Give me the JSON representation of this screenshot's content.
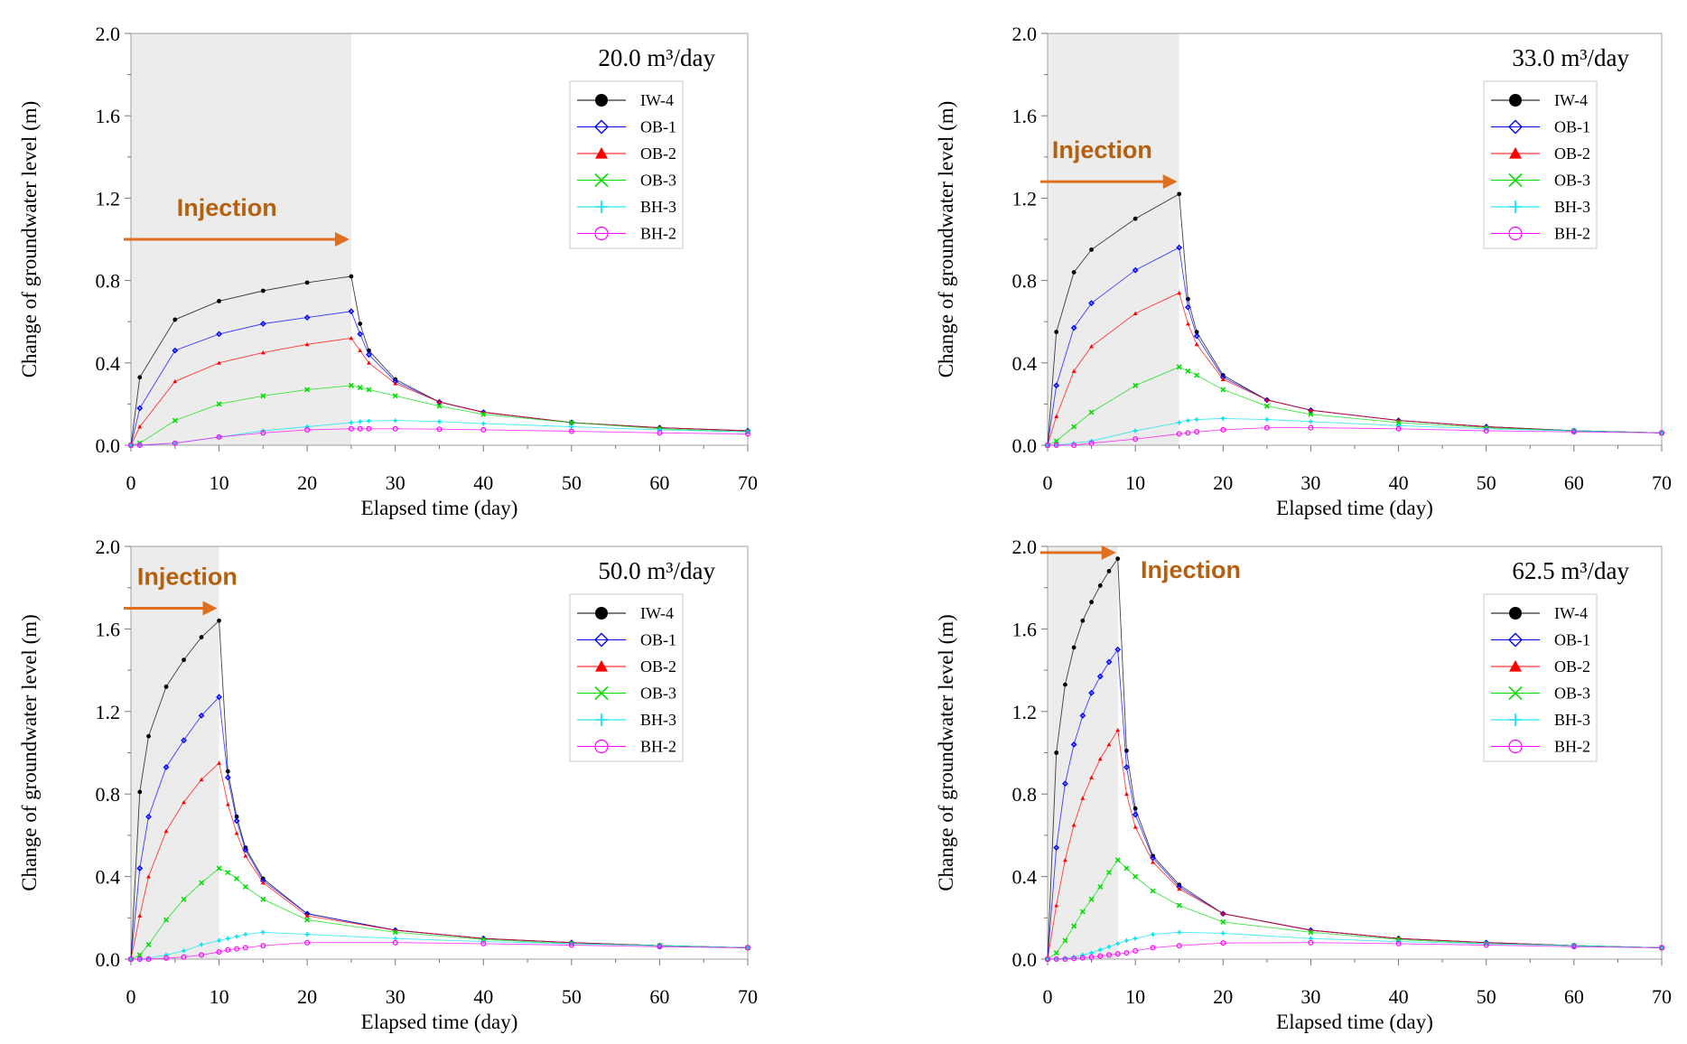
{
  "chart_data": [
    {
      "type": "line",
      "annotation_rate": "20.0 m³/day",
      "annotation_text": "Injection",
      "injection_end": 25,
      "xlabel": "Elapsed time (day)",
      "ylabel": "Change of groundwater level (m)",
      "xlim": [
        0,
        70
      ],
      "ylim": [
        0,
        2.0
      ],
      "xticks": [
        "0",
        "10",
        "20",
        "30",
        "40",
        "50",
        "60",
        "70"
      ],
      "yticks": [
        "0.0",
        "0.4",
        "0.8",
        "1.2",
        "1.6",
        "2.0"
      ],
      "legend_position": "top-right",
      "x": [
        0,
        1,
        5,
        10,
        15,
        20,
        25,
        26,
        27,
        30,
        35,
        40,
        50,
        60,
        70
      ],
      "series": [
        {
          "name": "IW-4",
          "color": "#000000",
          "marker": "filled-circle",
          "values": [
            0,
            0.33,
            0.61,
            0.7,
            0.75,
            0.79,
            0.82,
            0.59,
            0.46,
            0.32,
            0.21,
            0.16,
            0.11,
            0.085,
            0.07
          ]
        },
        {
          "name": "OB-1",
          "color": "#0000ff",
          "marker": "open-diamond",
          "values": [
            0,
            0.18,
            0.46,
            0.54,
            0.59,
            0.62,
            0.65,
            0.54,
            0.44,
            0.31,
            0.21,
            0.16,
            0.11,
            0.085,
            0.07
          ]
        },
        {
          "name": "OB-2",
          "color": "#ff0000",
          "marker": "filled-triangle",
          "values": [
            0,
            0.09,
            0.31,
            0.4,
            0.45,
            0.49,
            0.52,
            0.46,
            0.4,
            0.3,
            0.21,
            0.16,
            0.11,
            0.085,
            0.07
          ]
        },
        {
          "name": "OB-3",
          "color": "#00dd00",
          "marker": "x-cross",
          "values": [
            0,
            0.01,
            0.12,
            0.2,
            0.24,
            0.27,
            0.29,
            0.28,
            0.27,
            0.24,
            0.19,
            0.15,
            0.11,
            0.08,
            0.065
          ]
        },
        {
          "name": "BH-3",
          "color": "#00e5ee",
          "marker": "plus",
          "values": [
            0,
            0,
            0.01,
            0.04,
            0.07,
            0.09,
            0.11,
            0.115,
            0.118,
            0.12,
            0.115,
            0.105,
            0.09,
            0.075,
            0.065
          ]
        },
        {
          "name": "BH-2",
          "color": "#ff00ff",
          "marker": "open-circle",
          "values": [
            0,
            0,
            0.01,
            0.04,
            0.06,
            0.075,
            0.08,
            0.08,
            0.08,
            0.08,
            0.078,
            0.075,
            0.068,
            0.06,
            0.055
          ]
        }
      ]
    },
    {
      "type": "line",
      "annotation_rate": "33.0 m³/day",
      "annotation_text": "Injection",
      "injection_end": 15,
      "xlabel": "Elapsed time (day)",
      "ylabel": "Change of groundwater level (m)",
      "xlim": [
        0,
        70
      ],
      "ylim": [
        0,
        2.0
      ],
      "xticks": [
        "0",
        "10",
        "20",
        "30",
        "40",
        "50",
        "60",
        "70"
      ],
      "yticks": [
        "0.0",
        "0.4",
        "0.8",
        "1.2",
        "1.6",
        "2.0"
      ],
      "legend_position": "top-right",
      "x": [
        0,
        1,
        3,
        5,
        10,
        15,
        16,
        17,
        20,
        25,
        30,
        40,
        50,
        60,
        70
      ],
      "series": [
        {
          "name": "IW-4",
          "color": "#000000",
          "marker": "filled-circle",
          "values": [
            0,
            0.55,
            0.84,
            0.95,
            1.1,
            1.22,
            0.71,
            0.55,
            0.34,
            0.22,
            0.17,
            0.12,
            0.09,
            0.07,
            0.06
          ]
        },
        {
          "name": "OB-1",
          "color": "#0000ff",
          "marker": "open-diamond",
          "values": [
            0,
            0.29,
            0.57,
            0.69,
            0.85,
            0.96,
            0.67,
            0.53,
            0.33,
            0.22,
            0.17,
            0.12,
            0.09,
            0.07,
            0.06
          ]
        },
        {
          "name": "OB-2",
          "color": "#ff0000",
          "marker": "filled-triangle",
          "values": [
            0,
            0.14,
            0.36,
            0.48,
            0.64,
            0.74,
            0.59,
            0.49,
            0.32,
            0.22,
            0.17,
            0.12,
            0.09,
            0.07,
            0.06
          ]
        },
        {
          "name": "OB-3",
          "color": "#00dd00",
          "marker": "x-cross",
          "values": [
            0,
            0.02,
            0.09,
            0.16,
            0.29,
            0.38,
            0.36,
            0.34,
            0.27,
            0.19,
            0.15,
            0.11,
            0.085,
            0.07,
            0.06
          ]
        },
        {
          "name": "BH-3",
          "color": "#00e5ee",
          "marker": "plus",
          "values": [
            0,
            0,
            0.01,
            0.02,
            0.07,
            0.11,
            0.12,
            0.125,
            0.13,
            0.125,
            0.115,
            0.095,
            0.08,
            0.07,
            0.06
          ]
        },
        {
          "name": "BH-2",
          "color": "#ff00ff",
          "marker": "open-circle",
          "values": [
            0,
            0,
            0,
            0.01,
            0.03,
            0.055,
            0.06,
            0.065,
            0.075,
            0.085,
            0.085,
            0.08,
            0.07,
            0.065,
            0.06
          ]
        }
      ]
    },
    {
      "type": "line",
      "annotation_rate": "50.0 m³/day",
      "annotation_text": "Injection",
      "injection_end": 10,
      "xlabel": "Elapsed time (day)",
      "ylabel": "Change of groundwater level (m)",
      "xlim": [
        0,
        70
      ],
      "ylim": [
        0,
        2.0
      ],
      "xticks": [
        "0",
        "10",
        "20",
        "30",
        "40",
        "50",
        "60",
        "70"
      ],
      "yticks": [
        "0.0",
        "0.4",
        "0.8",
        "1.2",
        "1.6",
        "2.0"
      ],
      "legend_position": "top-right",
      "x": [
        0,
        1,
        2,
        4,
        6,
        8,
        10,
        11,
        12,
        13,
        15,
        20,
        30,
        40,
        50,
        60,
        70
      ],
      "series": [
        {
          "name": "IW-4",
          "color": "#000000",
          "marker": "filled-circle",
          "values": [
            0,
            0.81,
            1.08,
            1.32,
            1.45,
            1.56,
            1.64,
            0.91,
            0.69,
            0.54,
            0.39,
            0.22,
            0.14,
            0.1,
            0.08,
            0.065,
            0.055
          ]
        },
        {
          "name": "OB-1",
          "color": "#0000ff",
          "marker": "open-diamond",
          "values": [
            0,
            0.44,
            0.69,
            0.93,
            1.06,
            1.18,
            1.27,
            0.88,
            0.67,
            0.53,
            0.38,
            0.22,
            0.14,
            0.1,
            0.08,
            0.065,
            0.055
          ]
        },
        {
          "name": "OB-2",
          "color": "#ff0000",
          "marker": "filled-triangle",
          "values": [
            0,
            0.21,
            0.4,
            0.62,
            0.76,
            0.87,
            0.95,
            0.75,
            0.61,
            0.5,
            0.37,
            0.21,
            0.14,
            0.1,
            0.08,
            0.065,
            0.055
          ]
        },
        {
          "name": "OB-3",
          "color": "#00dd00",
          "marker": "x-cross",
          "values": [
            0,
            0.02,
            0.07,
            0.19,
            0.29,
            0.37,
            0.44,
            0.42,
            0.39,
            0.35,
            0.29,
            0.19,
            0.13,
            0.095,
            0.075,
            0.065,
            0.055
          ]
        },
        {
          "name": "BH-3",
          "color": "#00e5ee",
          "marker": "plus",
          "values": [
            0,
            0,
            0.005,
            0.02,
            0.04,
            0.07,
            0.09,
            0.1,
            0.11,
            0.12,
            0.13,
            0.12,
            0.1,
            0.085,
            0.075,
            0.065,
            0.055
          ]
        },
        {
          "name": "BH-2",
          "color": "#ff00ff",
          "marker": "open-circle",
          "values": [
            0,
            0,
            0,
            0.005,
            0.01,
            0.02,
            0.035,
            0.045,
            0.05,
            0.055,
            0.065,
            0.08,
            0.08,
            0.075,
            0.068,
            0.06,
            0.055
          ]
        }
      ]
    },
    {
      "type": "line",
      "annotation_rate": "62.5 m³/day",
      "annotation_text": "Injection",
      "injection_end": 8,
      "xlabel": "Elapsed time (day)",
      "ylabel": "Change of groundwater level (m)",
      "xlim": [
        0,
        70
      ],
      "ylim": [
        0,
        2.0
      ],
      "xticks": [
        "0",
        "10",
        "20",
        "30",
        "40",
        "50",
        "60",
        "70"
      ],
      "yticks": [
        "0.0",
        "0.4",
        "0.8",
        "1.2",
        "1.6",
        "2.0"
      ],
      "legend_position": "top-right",
      "x": [
        0,
        1,
        2,
        3,
        4,
        5,
        6,
        7,
        8,
        9,
        10,
        12,
        15,
        20,
        30,
        40,
        50,
        60,
        70
      ],
      "series": [
        {
          "name": "IW-4",
          "color": "#000000",
          "marker": "filled-circle",
          "values": [
            0,
            1.0,
            1.33,
            1.51,
            1.64,
            1.73,
            1.81,
            1.88,
            1.94,
            1.01,
            0.73,
            0.5,
            0.36,
            0.22,
            0.14,
            0.1,
            0.08,
            0.065,
            0.055
          ]
        },
        {
          "name": "OB-1",
          "color": "#0000ff",
          "marker": "open-diamond",
          "values": [
            0,
            0.54,
            0.85,
            1.04,
            1.18,
            1.29,
            1.37,
            1.44,
            1.5,
            0.93,
            0.7,
            0.49,
            0.35,
            0.22,
            0.14,
            0.1,
            0.08,
            0.065,
            0.055
          ]
        },
        {
          "name": "OB-2",
          "color": "#ff0000",
          "marker": "filled-triangle",
          "values": [
            0,
            0.26,
            0.48,
            0.65,
            0.78,
            0.88,
            0.97,
            1.04,
            1.11,
            0.8,
            0.64,
            0.47,
            0.34,
            0.22,
            0.14,
            0.1,
            0.08,
            0.065,
            0.055
          ]
        },
        {
          "name": "OB-3",
          "color": "#00dd00",
          "marker": "x-cross",
          "values": [
            0,
            0.03,
            0.09,
            0.16,
            0.23,
            0.29,
            0.35,
            0.42,
            0.48,
            0.44,
            0.4,
            0.33,
            0.26,
            0.18,
            0.13,
            0.095,
            0.075,
            0.065,
            0.055
          ]
        },
        {
          "name": "BH-3",
          "color": "#00e5ee",
          "marker": "plus",
          "values": [
            0,
            0,
            0.005,
            0.01,
            0.02,
            0.03,
            0.045,
            0.06,
            0.075,
            0.09,
            0.1,
            0.12,
            0.13,
            0.125,
            0.1,
            0.085,
            0.075,
            0.065,
            0.055
          ]
        },
        {
          "name": "BH-2",
          "color": "#ff00ff",
          "marker": "open-circle",
          "values": [
            0,
            0,
            0,
            0.003,
            0.006,
            0.01,
            0.015,
            0.02,
            0.025,
            0.03,
            0.04,
            0.055,
            0.065,
            0.078,
            0.08,
            0.075,
            0.068,
            0.06,
            0.055
          ]
        }
      ]
    }
  ]
}
